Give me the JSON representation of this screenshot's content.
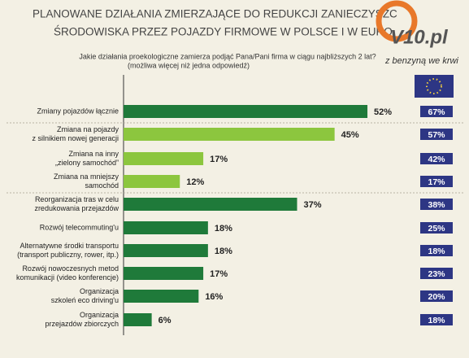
{
  "chart_data": {
    "type": "bar",
    "orientation": "horizontal",
    "title": [
      "PLANOWANE DZIAŁANIA ZMIERZAJĄCE DO REDUKCJI ZANIECZYSZC",
      "ŚRODOWISKA PRZEZ POJAZDY FIRMOWE W POLSCE I W EURO"
    ],
    "subtitle": [
      "Jakie działania proekologiczne zamierza podjąć Pana/Pani firma w ciągu najbliższych 2 lat?",
      "(możliwa więcej niż jedna odpowiedź)"
    ],
    "logo": {
      "text": "V10.pl",
      "tagline": "z benzyną we krwi"
    },
    "categories": [
      [
        "Zmiany pojazdów łącznie"
      ],
      [
        "Zmiana na pojazdy",
        "z silnikiem nowej generacji"
      ],
      [
        "Zmiana na inny",
        "„zielony samochód”"
      ],
      [
        "Zmiana na mniejszy",
        "samochód"
      ],
      [
        "Reorganizacja tras w celu",
        "zredukowania przejazdów"
      ],
      [
        "Rozwój telecommuting'u"
      ],
      [
        "Alternatywne środki transportu",
        "(transport publiczny, rower, itp.)"
      ],
      [
        "Rozwój nowoczesnych metod",
        "komunikacji (video konferencje)"
      ],
      [
        "Organizacja",
        "szkoleń eco driving'u"
      ],
      [
        "Organizacja",
        "przejazdów zbiorczych"
      ]
    ],
    "values": [
      52,
      45,
      17,
      12,
      37,
      18,
      18,
      17,
      16,
      6
    ],
    "value_labels": [
      "52%",
      "45%",
      "17%",
      "12%",
      "37%",
      "18%",
      "18%",
      "17%",
      "16%",
      "6%"
    ],
    "colors": [
      "#1f7a3a",
      "#8cc63e",
      "#8cc63e",
      "#8cc63e",
      "#1f7a3a",
      "#1f7a3a",
      "#1f7a3a",
      "#1f7a3a",
      "#1f7a3a",
      "#1f7a3a"
    ],
    "europe_values": [
      67,
      57,
      42,
      17,
      38,
      25,
      18,
      23,
      20,
      18
    ],
    "europe_value_labels": [
      "67%",
      "57%",
      "42%",
      "17%",
      "38%",
      "25%",
      "18%",
      "23%",
      "20%",
      "18%"
    ],
    "europe_color": "#2d3684"
  }
}
